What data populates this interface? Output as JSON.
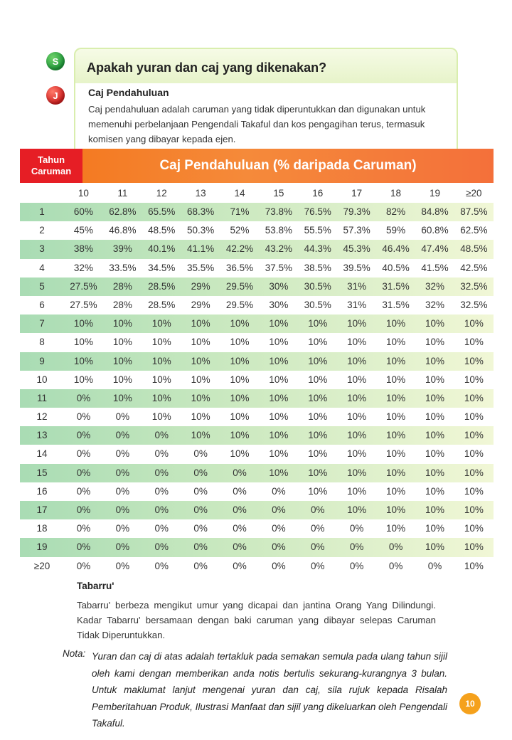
{
  "badges": {
    "s": "S",
    "j": "J"
  },
  "question": "Apakah yuran dan caj yang dikenakan?",
  "section": {
    "title": "Caj Pendahuluan",
    "text": "Caj pendahuluan adalah caruman yang tidak diperuntukkan dan digunakan untuk memenuhi perbelanjaan Pengendali Takaful dan kos pengagihan terus, termasuk komisen yang dibayar kepada ejen."
  },
  "table": {
    "year_header_line1": "Tahun",
    "year_header_line2": "Caruman",
    "main_header": "Caj Pendahuluan (% daripada Caruman)",
    "columns": [
      "10",
      "11",
      "12",
      "13",
      "14",
      "15",
      "16",
      "17",
      "18",
      "19",
      "≥20"
    ],
    "rows": [
      {
        "year": "1",
        "values": [
          "60%",
          "62.8%",
          "65.5%",
          "68.3%",
          "71%",
          "73.8%",
          "76.5%",
          "79.3%",
          "82%",
          "84.8%",
          "87.5%"
        ]
      },
      {
        "year": "2",
        "values": [
          "45%",
          "46.8%",
          "48.5%",
          "50.3%",
          "52%",
          "53.8%",
          "55.5%",
          "57.3%",
          "59%",
          "60.8%",
          "62.5%"
        ]
      },
      {
        "year": "3",
        "values": [
          "38%",
          "39%",
          "40.1%",
          "41.1%",
          "42.2%",
          "43.2%",
          "44.3%",
          "45.3%",
          "46.4%",
          "47.4%",
          "48.5%"
        ]
      },
      {
        "year": "4",
        "values": [
          "32%",
          "33.5%",
          "34.5%",
          "35.5%",
          "36.5%",
          "37.5%",
          "38.5%",
          "39.5%",
          "40.5%",
          "41.5%",
          "42.5%"
        ]
      },
      {
        "year": "5",
        "values": [
          "27.5%",
          "28%",
          "28.5%",
          "29%",
          "29.5%",
          "30%",
          "30.5%",
          "31%",
          "31.5%",
          "32%",
          "32.5%"
        ]
      },
      {
        "year": "6",
        "values": [
          "27.5%",
          "28%",
          "28.5%",
          "29%",
          "29.5%",
          "30%",
          "30.5%",
          "31%",
          "31.5%",
          "32%",
          "32.5%"
        ]
      },
      {
        "year": "7",
        "values": [
          "10%",
          "10%",
          "10%",
          "10%",
          "10%",
          "10%",
          "10%",
          "10%",
          "10%",
          "10%",
          "10%"
        ]
      },
      {
        "year": "8",
        "values": [
          "10%",
          "10%",
          "10%",
          "10%",
          "10%",
          "10%",
          "10%",
          "10%",
          "10%",
          "10%",
          "10%"
        ]
      },
      {
        "year": "9",
        "values": [
          "10%",
          "10%",
          "10%",
          "10%",
          "10%",
          "10%",
          "10%",
          "10%",
          "10%",
          "10%",
          "10%"
        ]
      },
      {
        "year": "10",
        "values": [
          "10%",
          "10%",
          "10%",
          "10%",
          "10%",
          "10%",
          "10%",
          "10%",
          "10%",
          "10%",
          "10%"
        ]
      },
      {
        "year": "11",
        "values": [
          "0%",
          "10%",
          "10%",
          "10%",
          "10%",
          "10%",
          "10%",
          "10%",
          "10%",
          "10%",
          "10%"
        ]
      },
      {
        "year": "12",
        "values": [
          "0%",
          "0%",
          "10%",
          "10%",
          "10%",
          "10%",
          "10%",
          "10%",
          "10%",
          "10%",
          "10%"
        ]
      },
      {
        "year": "13",
        "values": [
          "0%",
          "0%",
          "0%",
          "10%",
          "10%",
          "10%",
          "10%",
          "10%",
          "10%",
          "10%",
          "10%"
        ]
      },
      {
        "year": "14",
        "values": [
          "0%",
          "0%",
          "0%",
          "0%",
          "10%",
          "10%",
          "10%",
          "10%",
          "10%",
          "10%",
          "10%"
        ]
      },
      {
        "year": "15",
        "values": [
          "0%",
          "0%",
          "0%",
          "0%",
          "0%",
          "10%",
          "10%",
          "10%",
          "10%",
          "10%",
          "10%"
        ]
      },
      {
        "year": "16",
        "values": [
          "0%",
          "0%",
          "0%",
          "0%",
          "0%",
          "0%",
          "10%",
          "10%",
          "10%",
          "10%",
          "10%"
        ]
      },
      {
        "year": "17",
        "values": [
          "0%",
          "0%",
          "0%",
          "0%",
          "0%",
          "0%",
          "0%",
          "10%",
          "10%",
          "10%",
          "10%"
        ]
      },
      {
        "year": "18",
        "values": [
          "0%",
          "0%",
          "0%",
          "0%",
          "0%",
          "0%",
          "0%",
          "0%",
          "10%",
          "10%",
          "10%"
        ]
      },
      {
        "year": "19",
        "values": [
          "0%",
          "0%",
          "0%",
          "0%",
          "0%",
          "0%",
          "0%",
          "0%",
          "0%",
          "10%",
          "10%"
        ]
      },
      {
        "year": "≥20",
        "values": [
          "0%",
          "0%",
          "0%",
          "0%",
          "0%",
          "0%",
          "0%",
          "0%",
          "0%",
          "0%",
          "10%"
        ]
      }
    ]
  },
  "tabarru": {
    "title": "Tabarru'",
    "text": "Tabarru' berbeza mengikut umur yang dicapai dan jantina Orang Yang Dilindungi. Kadar Tabarru' bersamaan dengan baki caruman yang dibayar selepas Caruman Tidak Diperuntukkan."
  },
  "note": {
    "label": "Nota:",
    "text": "Yuran dan caj di atas adalah tertakluk pada semakan semula pada ulang tahun sijil oleh kami dengan memberikan anda notis bertulis sekurang-kurangnya 3 bulan. Untuk maklumat lanjut mengenai yuran dan caj, sila rujuk kepada Risalah Pemberitahuan Produk, Ilustrasi Manfaat dan sijil yang dikeluarkan oleh Pengendali Takaful."
  },
  "page_number": "10",
  "colors": {
    "header_red": "#e61e25",
    "header_orange": "#f47a22",
    "row_green": "#a9dcb4",
    "page_badge": "#f5a11c"
  }
}
